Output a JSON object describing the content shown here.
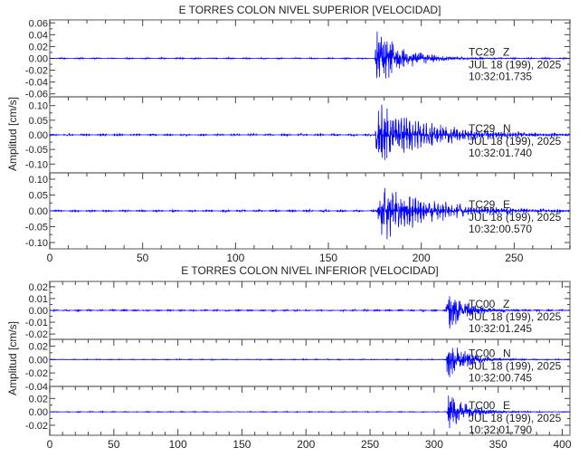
{
  "chart_data": [
    {
      "type": "line",
      "title": "E TORRES COLON NIVEL SUPERIOR [VELOCIDAD]",
      "ylabel": "Amplitud [cm/s]",
      "xlim": [
        0,
        280
      ],
      "xticks": [
        0,
        50,
        100,
        150,
        200,
        250
      ],
      "xtick_labels": [
        "0",
        "50",
        "100",
        "150",
        "200",
        "250"
      ],
      "grid": false,
      "series": [
        {
          "name": "TC29 Z",
          "station": "TC29",
          "component": "Z",
          "date": "JUL 18 (199), 2025",
          "time": "10:32:01.735",
          "ylim": [
            -0.065,
            0.065
          ],
          "yticks": [
            0.06,
            0.04,
            0.02,
            0.0,
            -0.02,
            -0.04,
            -0.06
          ],
          "ytick_labels": [
            "0.06",
            "0.04",
            "0.02",
            "0.00",
            "-0.02",
            "-0.04",
            "-0.06"
          ],
          "noise": 0.0012,
          "onset": 175,
          "peak": 0.06,
          "decay": 14,
          "period": 0.8,
          "seed": 3
        },
        {
          "name": "TC29 N",
          "station": "TC29",
          "component": "N",
          "date": "JUL 18 (199), 2025",
          "time": "10:32:01.740",
          "ylim": [
            -0.13,
            0.13
          ],
          "yticks": [
            0.1,
            0.05,
            0.0,
            -0.05,
            -0.1
          ],
          "ytick_labels": [
            "0.10",
            "0.05",
            "0.00",
            "-0.05",
            "-0.10"
          ],
          "noise": 0.004,
          "onset": 175,
          "peak": 0.12,
          "decay": 28,
          "period": 1.5,
          "seed": 7
        },
        {
          "name": "TC29 E",
          "station": "TC29",
          "component": "E",
          "date": "JUL 18 (199), 2025",
          "time": "10:32:00.570",
          "ylim": [
            -0.12,
            0.12
          ],
          "yticks": [
            0.1,
            0.05,
            0.0,
            -0.05,
            -0.1
          ],
          "ytick_labels": [
            "0.10",
            "0.05",
            "0.00",
            "-0.05",
            "-0.10"
          ],
          "noise": 0.004,
          "onset": 176,
          "peak": 0.11,
          "decay": 26,
          "period": 1.5,
          "seed": 11
        }
      ]
    },
    {
      "type": "line",
      "title": "E TORRES COLON NIVEL INFERIOR [VELOCIDAD]",
      "ylabel": "Amplitud [cm/s]",
      "xlim": [
        0,
        406
      ],
      "xticks": [
        0,
        50,
        100,
        150,
        200,
        250,
        300,
        350,
        400
      ],
      "xtick_labels": [
        "0",
        "50",
        "100",
        "150",
        "200",
        "250",
        "300",
        "350",
        "400"
      ],
      "grid": false,
      "series": [
        {
          "name": "TC00 Z",
          "station": "TC00",
          "component": "Z",
          "date": "JUL 18 (199), 2025",
          "time": "10:32:01.245",
          "ylim": [
            -0.0245,
            0.0245
          ],
          "yticks": [
            0.02,
            0.01,
            0.0,
            -0.01,
            -0.02
          ],
          "ytick_labels": [
            "0.02",
            "0.01",
            "0.00",
            "-0.01",
            "-0.02"
          ],
          "noise": 0.0008,
          "onset": 309,
          "peak": 0.023,
          "decay": 14,
          "period": 1.0,
          "seed": 5
        },
        {
          "name": "TC00 N",
          "station": "TC00",
          "component": "N",
          "date": "JUL 18 (199), 2025",
          "time": "10:32:00.745",
          "ylim": [
            -0.04,
            0.03
          ],
          "yticks": [
            0.02,
            0.0,
            -0.02,
            -0.04
          ],
          "ytick_labels": [
            "0.02",
            "0.00",
            "-0.02",
            "-0.04"
          ],
          "noise": 0.0007,
          "onset": 309,
          "peak": 0.038,
          "decay": 14,
          "period": 1.0,
          "seed": 13
        },
        {
          "name": "TC00 E",
          "station": "TC00",
          "component": "E",
          "date": "JUL 18 (199), 2025",
          "time": "10:32:01.790",
          "ylim": [
            -0.035,
            0.038
          ],
          "yticks": [
            0.02,
            0.0,
            -0.02
          ],
          "ytick_labels": [
            "0.02",
            "0.00",
            "-0.02"
          ],
          "noise": 0.0007,
          "onset": 310,
          "peak": 0.034,
          "decay": 15,
          "period": 1.0,
          "seed": 17
        }
      ]
    }
  ],
  "colors": {
    "trace": "#0000ff",
    "axis": "#8c8c8c",
    "text": "#222222"
  }
}
